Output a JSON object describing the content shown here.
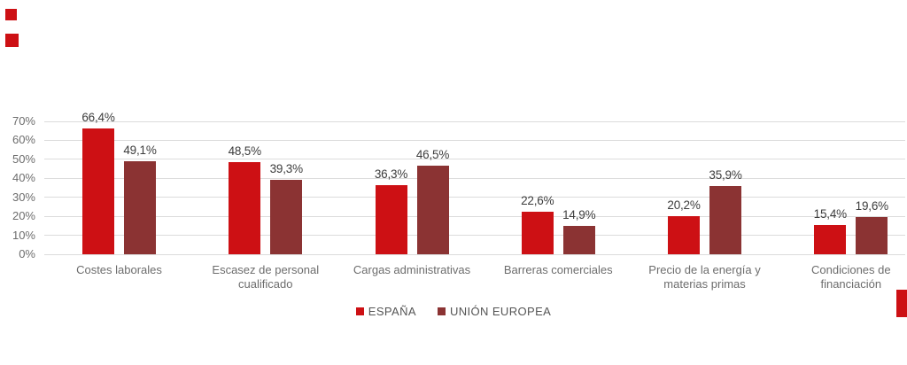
{
  "colors": {
    "background": "#ffffff",
    "grid": "#dcdcdc",
    "axis_text": "#6d6d6d",
    "value_text": "#3d3d3d",
    "legend_text": "#555555",
    "espana_red": "#cd1014",
    "ue_maroon": "#8b3333",
    "decor_red": "#cd1014"
  },
  "chart_data": {
    "type": "bar",
    "title": "",
    "xlabel": "",
    "ylabel": "",
    "categories": [
      "Costes laborales",
      "Escasez de personal\ncualificado",
      "Cargas administrativas",
      "Barreras comerciales",
      "Precio de la energía y\nmaterias primas",
      "Condiciones de\nfinanciación"
    ],
    "series": [
      {
        "name": "ESPAÑA",
        "color": "#cd1014",
        "values": [
          66.4,
          48.5,
          36.3,
          22.6,
          20.2,
          15.4
        ]
      },
      {
        "name": "UNIÓN EUROPEA",
        "color": "#8b3333",
        "values": [
          49.1,
          39.3,
          46.5,
          14.9,
          35.9,
          19.6
        ]
      }
    ],
    "value_labels": [
      [
        "66,4%",
        "48,5%",
        "36,3%",
        "22,6%",
        "20,2%",
        "15,4%"
      ],
      [
        "49,1%",
        "39,3%",
        "46,5%",
        "14,9%",
        "35,9%",
        "19,6%"
      ]
    ],
    "ylim": [
      0,
      70
    ],
    "yticks": [
      0,
      10,
      20,
      30,
      40,
      50,
      60,
      70
    ],
    "ytick_labels": [
      "0%",
      "10%",
      "20%",
      "30%",
      "40%",
      "50%",
      "60%",
      "70%"
    ],
    "grid": "horizontal",
    "legend_position": "bottom-center",
    "legend": [
      "ESPAÑA",
      "UNIÓN EUROPEA"
    ]
  }
}
